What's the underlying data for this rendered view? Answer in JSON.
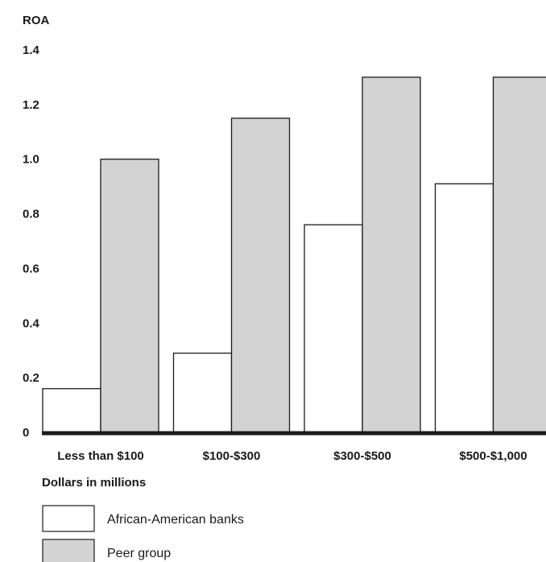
{
  "chart_data": {
    "type": "bar",
    "ylabel": "ROA",
    "xlabel": "Dollars in millions",
    "categories": [
      "Less than $100",
      "$100-$300",
      "$300-$500",
      "$500-$1,000"
    ],
    "series": [
      {
        "name": "African-American banks",
        "values": [
          0.16,
          0.29,
          0.76,
          0.91
        ],
        "color": "#ffffff"
      },
      {
        "name": "Peer group",
        "values": [
          1.0,
          1.15,
          1.3,
          1.3
        ],
        "color": "#d3d3d3"
      }
    ],
    "ylim": [
      0,
      1.4
    ],
    "yticks": [
      "0",
      "0.2",
      "0.4",
      "0.6",
      "0.8",
      "1.0",
      "1.2",
      "1.4"
    ],
    "grid": false,
    "legend": "bottom-left"
  }
}
